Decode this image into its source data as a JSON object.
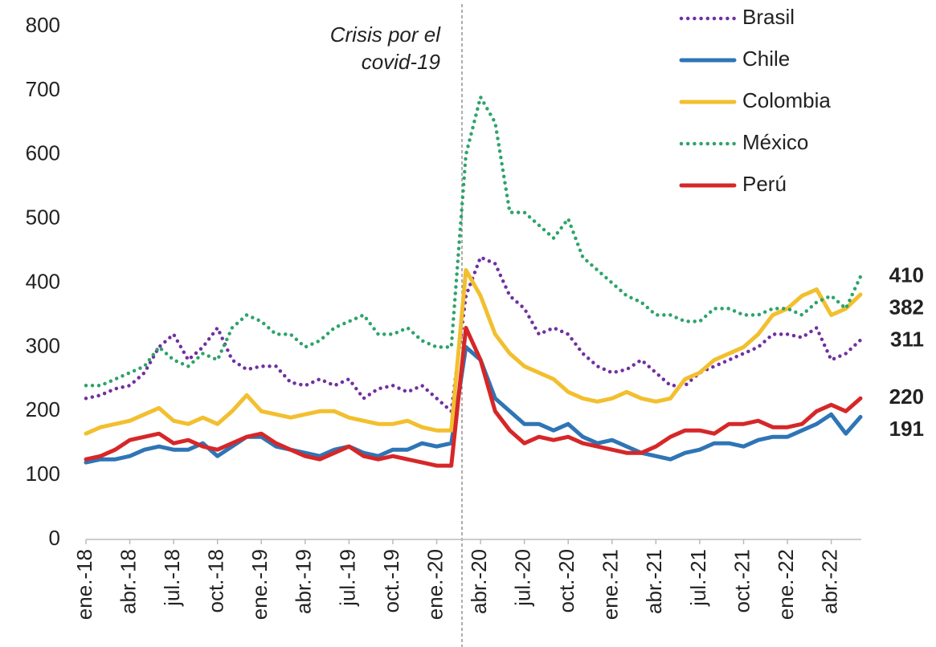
{
  "chart_data": {
    "type": "line",
    "annotation": "Crisis por el covid-19",
    "categories": [
      "ene.-18",
      null,
      null,
      "abr.-18",
      null,
      null,
      "jul.-18",
      null,
      null,
      "oct.-18",
      null,
      null,
      "ene.-19",
      null,
      null,
      "abr.-19",
      null,
      null,
      "jul.-19",
      null,
      null,
      "oct.-19",
      null,
      null,
      "ene.-20",
      null,
      null,
      "abr.-20",
      null,
      null,
      "jul.-20",
      null,
      null,
      "oct.-20",
      null,
      null,
      "ene.-21",
      null,
      null,
      "abr.-21",
      null,
      null,
      "jul.-21",
      null,
      null,
      "oct.-21",
      null,
      null,
      "ene.-22",
      null,
      null,
      "abr.-22",
      null,
      null
    ],
    "series": [
      {
        "name": "Brasil",
        "color": "#7030a0",
        "dotted": true,
        "values": [
          220,
          225,
          235,
          240,
          260,
          300,
          320,
          280,
          300,
          330,
          280,
          265,
          270,
          270,
          245,
          240,
          250,
          240,
          250,
          220,
          235,
          240,
          230,
          240,
          220,
          200,
          380,
          440,
          430,
          380,
          360,
          320,
          330,
          320,
          290,
          270,
          260,
          265,
          280,
          260,
          240,
          240,
          260,
          270,
          280,
          290,
          300,
          320,
          320,
          315,
          330,
          280,
          290,
          311
        ]
      },
      {
        "name": "Chile",
        "color": "#2e75b6",
        "dotted": false,
        "values": [
          120,
          125,
          125,
          130,
          140,
          145,
          140,
          140,
          150,
          130,
          145,
          160,
          160,
          145,
          140,
          135,
          130,
          140,
          145,
          135,
          130,
          140,
          140,
          150,
          145,
          150,
          300,
          280,
          220,
          200,
          180,
          180,
          170,
          180,
          160,
          150,
          155,
          145,
          135,
          130,
          125,
          135,
          140,
          150,
          150,
          145,
          155,
          160,
          160,
          170,
          180,
          195,
          165,
          191
        ]
      },
      {
        "name": "Colombia",
        "color": "#f2bf2f",
        "dotted": false,
        "values": [
          165,
          175,
          180,
          185,
          195,
          205,
          185,
          180,
          190,
          180,
          200,
          225,
          200,
          195,
          190,
          195,
          200,
          200,
          190,
          185,
          180,
          180,
          185,
          175,
          170,
          170,
          420,
          380,
          320,
          290,
          270,
          260,
          250,
          230,
          220,
          215,
          220,
          230,
          220,
          215,
          220,
          250,
          260,
          280,
          290,
          300,
          320,
          350,
          360,
          380,
          390,
          350,
          360,
          382
        ]
      },
      {
        "name": "México",
        "color": "#2ea36b",
        "dotted": true,
        "values": [
          240,
          240,
          250,
          260,
          270,
          300,
          280,
          270,
          290,
          280,
          330,
          350,
          340,
          320,
          320,
          300,
          310,
          330,
          340,
          350,
          320,
          320,
          330,
          310,
          300,
          300,
          600,
          690,
          650,
          510,
          510,
          490,
          470,
          500,
          440,
          420,
          400,
          380,
          370,
          350,
          350,
          340,
          340,
          360,
          360,
          350,
          350,
          360,
          360,
          350,
          370,
          380,
          360,
          410
        ]
      },
      {
        "name": "Perú",
        "color": "#d62728",
        "dotted": false,
        "values": [
          125,
          130,
          140,
          155,
          160,
          165,
          150,
          155,
          145,
          140,
          150,
          160,
          165,
          150,
          140,
          130,
          125,
          135,
          145,
          130,
          125,
          130,
          125,
          120,
          115,
          115,
          330,
          280,
          200,
          170,
          150,
          160,
          155,
          160,
          150,
          145,
          140,
          135,
          135,
          145,
          160,
          170,
          170,
          165,
          180,
          180,
          185,
          175,
          175,
          180,
          200,
          210,
          200,
          220
        ]
      }
    ],
    "ylim": [
      0,
      800
    ],
    "yticks": [
      0,
      100,
      200,
      300,
      400,
      500,
      600,
      700,
      800
    ],
    "legend": "top-right"
  }
}
